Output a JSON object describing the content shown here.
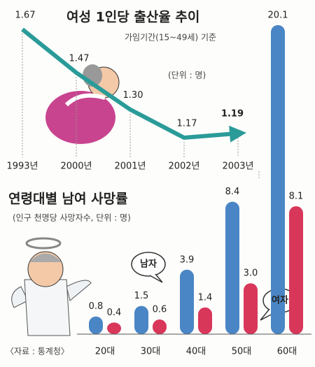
{
  "chart_data": [
    {
      "type": "line",
      "title": "여성 1인당 출산율 추이",
      "subtitle": "가임기간(15~49세) 기준",
      "unit_note": "(단위 : 명)",
      "categories": [
        "1993년",
        "2000년",
        "2001년",
        "2002년",
        "2003년"
      ],
      "values": [
        1.67,
        1.47,
        1.3,
        1.17,
        1.19
      ],
      "value_labels": [
        "1.67",
        "1.47",
        "1.30",
        "1.17",
        "1.19"
      ],
      "color": "#2a9b98"
    },
    {
      "type": "bar",
      "title": "연령대별 남여 사망률",
      "subtitle": "(인구 천명당 사망자수, 단위 : 명)",
      "source": "〈자료 : 통계청〉",
      "categories": [
        "20대",
        "30대",
        "40대",
        "50대",
        "60대"
      ],
      "series": [
        {
          "name": "남자",
          "color": "#4a86c5",
          "values": [
            0.8,
            1.5,
            3.9,
            8.4,
            20.1
          ],
          "value_labels": [
            "0.8",
            "1.5",
            "3.9",
            "8.4",
            "20.1"
          ]
        },
        {
          "name": "여자",
          "color": "#d8375a",
          "values": [
            0.4,
            0.6,
            1.4,
            3.0,
            8.1
          ],
          "value_labels": [
            "0.4",
            "0.6",
            "1.4",
            "3.0",
            "8.1"
          ]
        }
      ]
    }
  ]
}
